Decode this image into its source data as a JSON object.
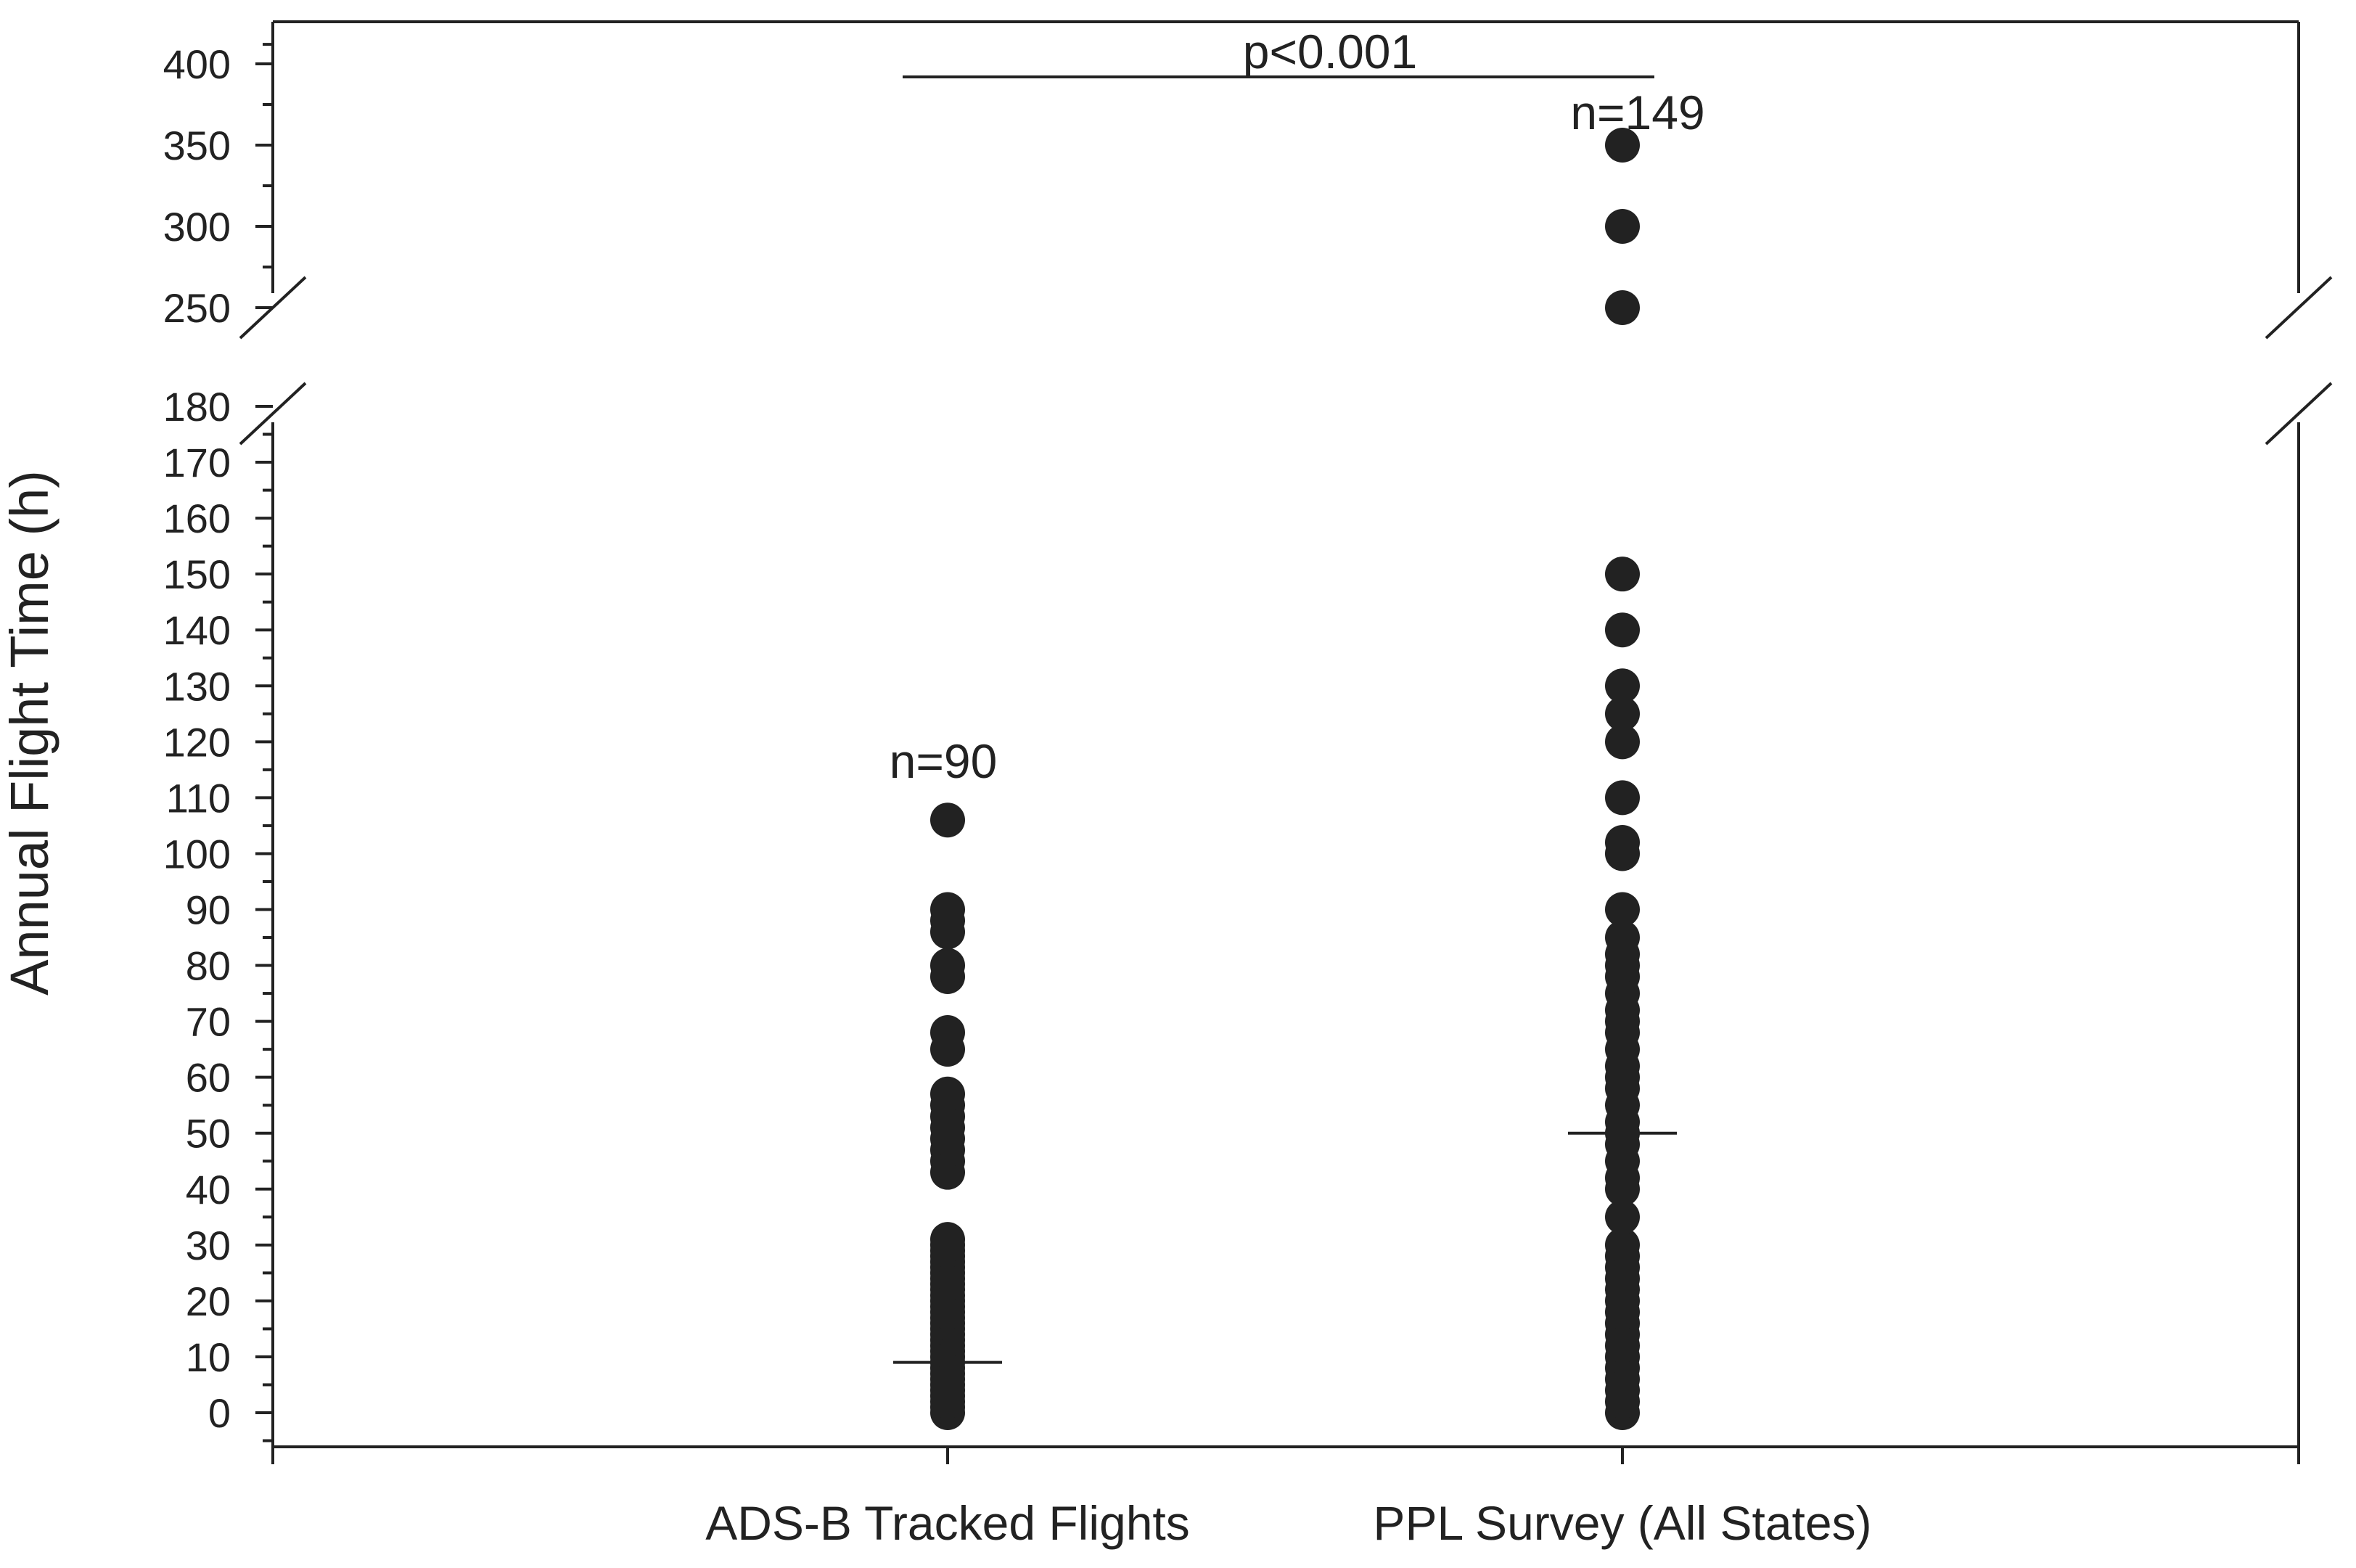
{
  "chart_data": {
    "type": "scatter",
    "title": "",
    "ylabel": "Annual Flight Time (h)",
    "xlabel": "",
    "categories": [
      "ADS-B Tracked Flights",
      "PPL Survey (All States)"
    ],
    "y_segments": [
      {
        "range": [
          0,
          180
        ],
        "ticks": [
          0,
          10,
          20,
          30,
          40,
          50,
          60,
          70,
          80,
          90,
          100,
          110,
          120,
          130,
          140,
          150,
          160,
          170,
          180
        ]
      },
      {
        "range": [
          240,
          410
        ],
        "ticks": [
          250,
          300,
          350,
          400
        ]
      }
    ],
    "axis_break": [
      180,
      240
    ],
    "grid": false,
    "series": [
      {
        "category": "ADS-B Tracked Flights",
        "median": 9,
        "values": [
          0,
          1,
          2,
          3,
          4,
          5,
          6,
          7,
          8,
          9,
          10,
          11,
          12,
          13,
          14,
          15,
          16,
          17,
          18,
          19,
          20,
          21,
          22,
          23,
          24,
          25,
          26,
          27,
          28,
          29,
          30,
          31,
          43,
          45,
          47,
          49,
          51,
          53,
          55,
          57,
          65,
          68,
          78,
          80,
          86,
          88,
          90,
          106
        ]
      },
      {
        "category": "PPL Survey (All States)",
        "median": 50,
        "values": [
          0,
          2,
          4,
          6,
          8,
          10,
          12,
          14,
          16,
          18,
          20,
          22,
          24,
          26,
          28,
          30,
          35,
          40,
          42,
          45,
          48,
          50,
          52,
          55,
          58,
          60,
          62,
          65,
          68,
          70,
          72,
          75,
          78,
          80,
          82,
          85,
          90,
          100,
          102,
          110,
          120,
          125,
          130,
          140,
          150,
          250,
          300,
          350
        ]
      }
    ],
    "annotations": {
      "n_left": "n=90",
      "n_right": "n=149",
      "significance": "p<0.001"
    }
  }
}
